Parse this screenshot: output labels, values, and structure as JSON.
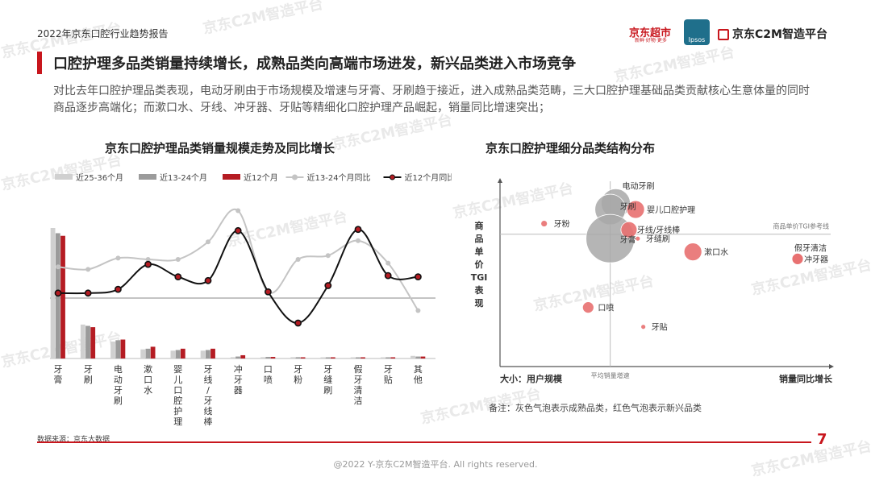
{
  "header": {
    "report_title": "2022年京东口腔行业趋势报告",
    "logos": {
      "jd_supermarket": "京东超市",
      "jd_supermarket_sub": "新鲜·好物·更多",
      "ipsos": "Ipsos",
      "c2m": "京东C2M智造平台"
    }
  },
  "headline": "口腔护理多品类销量持续增长，成熟品类向高端市场进发，新兴品类进入市场竞争",
  "intro": "对比去年口腔护理品类表现，电动牙刷由于市场规模及增速与牙膏、牙刷趋于接近，进入成熟品类范畴，三大口腔护理基础品类贡献核心生意体量的同时商品逐步高端化；而漱口水、牙线、冲牙器、牙贴等精细化口腔护理产品崛起，销量同比增速突出；",
  "watermark": "京东C2M智造平台",
  "colors": {
    "accent": "#c8161d",
    "bar_old": "#d0d0d0",
    "bar_mid": "#9b9b9b",
    "bar_new": "#b51c23",
    "line_old": "#c4c4c4",
    "line_new": "#111111",
    "bubble_gray": "#a8a8a8",
    "bubble_red": "#e87070"
  },
  "chart_data": [
    {
      "type": "bar",
      "title": "京东口腔护理品类销量规模走势及同比增长",
      "categories": [
        "牙膏",
        "牙刷",
        "电动牙刷",
        "漱口水",
        "婴儿口腔护理",
        "牙线/牙线棒",
        "冲牙器",
        "口喷",
        "牙粉",
        "牙缝刷",
        "假牙清洁",
        "牙贴",
        "其他"
      ],
      "category_labels": [
        "牙\n膏",
        "牙\n刷",
        "电\n动\n牙\n刷",
        "漱\n口\n水",
        "婴\n儿\n口\n腔\n护\n理",
        "牙\n线\n/\n牙\n线\n棒",
        "冲\n牙\n器",
        "口\n喷",
        "牙\n粉",
        "牙\n缝\n刷",
        "假\n牙\n清\n洁",
        "牙\n贴",
        "其\n他"
      ],
      "series": [
        {
          "name": "近25-36个月",
          "kind": "bar",
          "values": [
            100,
            26,
            13,
            7,
            6,
            6,
            1,
            1,
            1,
            0.5,
            0.3,
            0.3,
            2
          ]
        },
        {
          "name": "近13-24个月",
          "kind": "bar",
          "values": [
            96,
            25,
            14,
            7.5,
            6.5,
            6.5,
            1.5,
            1.2,
            1,
            0.6,
            0.3,
            0.3,
            1.5
          ]
        },
        {
          "name": "近12个月",
          "kind": "bar",
          "values": [
            94,
            24,
            14.5,
            9,
            7.5,
            7.5,
            2.5,
            1.2,
            0.8,
            0.8,
            0.5,
            0.5,
            1.5
          ]
        },
        {
          "name": "近13-24个月同比",
          "kind": "line",
          "values": [
            25,
            23,
            32,
            31,
            31,
            45,
            70,
            5,
            31,
            34,
            46,
            28,
            -10
          ]
        },
        {
          "name": "近12个月同比",
          "kind": "line",
          "values": [
            4,
            4,
            7,
            27,
            17,
            14,
            54,
            5,
            -20,
            10,
            55,
            18,
            17
          ]
        }
      ],
      "legend": "top",
      "axes_visible": false
    },
    {
      "type": "scatter",
      "title": "京东口腔护理细分品类结构分布",
      "xlabel": "销量同比增长",
      "ylabel": "商品单价TGI表现",
      "size_label": "大小：用户规模",
      "x_reference_label": "平均销量增速",
      "y_reference_label": "商品单价TGI参考线",
      "points": [
        {
          "name": "电动牙刷",
          "x": 5,
          "y": 55,
          "size": 18,
          "group": "mature"
        },
        {
          "name": "牙刷",
          "x": 0,
          "y": 48,
          "size": 19,
          "group": "mature"
        },
        {
          "name": "牙膏",
          "x": 0,
          "y": 15,
          "size": 30,
          "group": "mature"
        },
        {
          "name": "婴儿口腔护理",
          "x": 23,
          "y": 48,
          "size": 11,
          "group": "emerging"
        },
        {
          "name": "牙线/牙线棒",
          "x": 17,
          "y": 25,
          "size": 10,
          "group": "emerging"
        },
        {
          "name": "牙粉",
          "x": -60,
          "y": 32,
          "size": 4,
          "group": "emerging"
        },
        {
          "name": "牙缝刷",
          "x": 25,
          "y": 15,
          "size": 3,
          "group": "emerging"
        },
        {
          "name": "漱口水",
          "x": 75,
          "y": 0,
          "size": 11,
          "group": "emerging"
        },
        {
          "name": "假牙清洁",
          "x": 170,
          "y": -8,
          "size": 7,
          "group": "emerging"
        },
        {
          "name": "冲牙器",
          "x": 170,
          "y": -8,
          "size": 7,
          "group": "emerging"
        },
        {
          "name": "口喷",
          "x": -20,
          "y": -63,
          "size": 7,
          "group": "emerging"
        },
        {
          "name": "牙贴",
          "x": 30,
          "y": -85,
          "size": 3,
          "group": "emerging"
        }
      ],
      "xlim": [
        -100,
        200
      ],
      "ylim": [
        -130,
        80
      ],
      "x_reference": 0,
      "y_reference": 20
    }
  ],
  "source": "数据来源：京东大数据",
  "note": "备注：灰色气泡表示成熟品类，红色气泡表示新兴品类",
  "footer": "@2022 Y-京东C2M智造平台. All rights reserved.",
  "page_number": "7"
}
